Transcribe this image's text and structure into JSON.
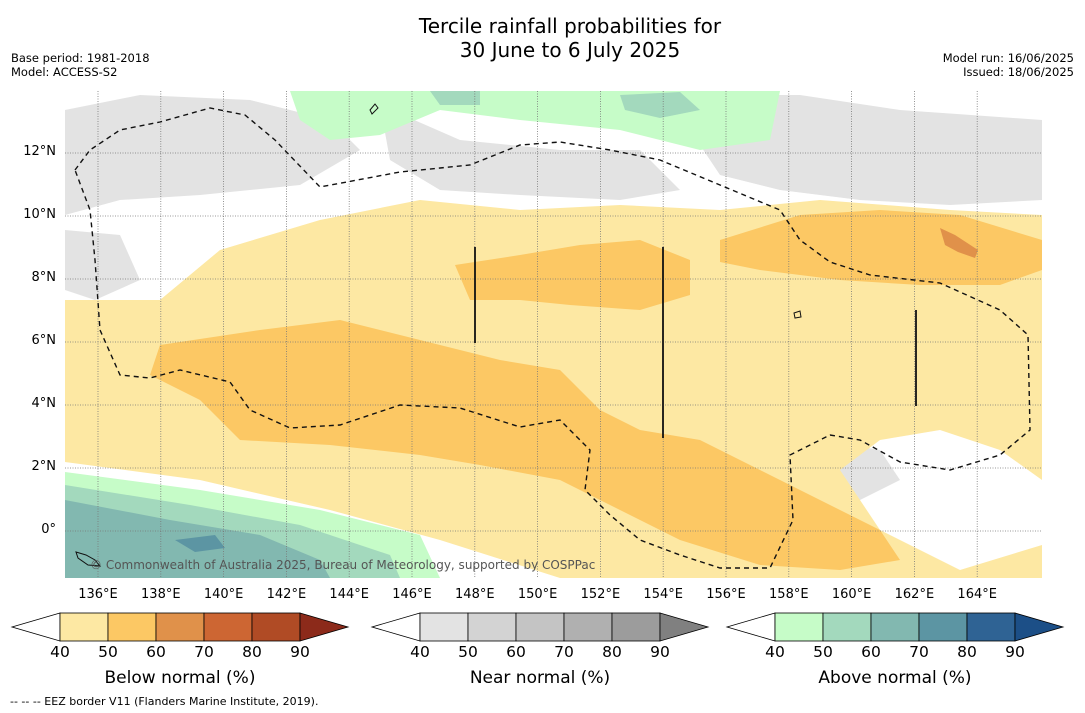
{
  "title": {
    "line1": "Tercile rainfall probabilities for",
    "line2": "30 June to 6 July 2025"
  },
  "meta_left": {
    "base_period": "Base period: 1981-2018",
    "model": "Model: ACCESS-S2"
  },
  "meta_right": {
    "model_run": "Model run: 16/06/2025",
    "issued": "Issued: 18/06/2025"
  },
  "map": {
    "x_ticks": [
      "136°E",
      "138°E",
      "140°E",
      "142°E",
      "144°E",
      "146°E",
      "148°E",
      "150°E",
      "152°E",
      "154°E",
      "156°E",
      "158°E",
      "160°E",
      "162°E",
      "164°E"
    ],
    "y_ticks": [
      "12°N",
      "10°N",
      "8°N",
      "6°N",
      "4°N",
      "2°N",
      "0°"
    ],
    "credit": "© Commonwealth of Australia 2025, Bureau of Meteorology, supported by COSPPac",
    "colors": {
      "below_40": "#fde8a3",
      "below_50": "#fcc864",
      "below_60": "#e0914a",
      "near_40": "#e3e3e3",
      "above_40": "#c6fcc8",
      "above_50": "#a3d9bd",
      "above_60": "#82b8b0",
      "above_70": "#5c95a3"
    }
  },
  "colorbars": [
    {
      "label": "Below normal (%)",
      "ticks": [
        "40",
        "50",
        "60",
        "70",
        "80",
        "90"
      ],
      "colors": [
        "#fde8a3",
        "#fcc864",
        "#e0914a",
        "#cd6633",
        "#b04b25",
        "#8c2a1a"
      ]
    },
    {
      "label": "Near normal (%)",
      "ticks": [
        "40",
        "50",
        "60",
        "70",
        "80",
        "90"
      ],
      "colors": [
        "#e3e3e3",
        "#d3d3d3",
        "#c4c4c4",
        "#b0b0b0",
        "#9c9c9c",
        "#808080"
      ]
    },
    {
      "label": "Above normal (%)",
      "ticks": [
        "40",
        "50",
        "60",
        "70",
        "80",
        "90"
      ],
      "colors": [
        "#c6fcc8",
        "#a3d9bd",
        "#82b8b0",
        "#5c95a3",
        "#2f6394",
        "#1c4f87"
      ]
    }
  ],
  "footnote": "-- -- -- EEZ border V11 (Flanders Marine Institute, 2019)."
}
